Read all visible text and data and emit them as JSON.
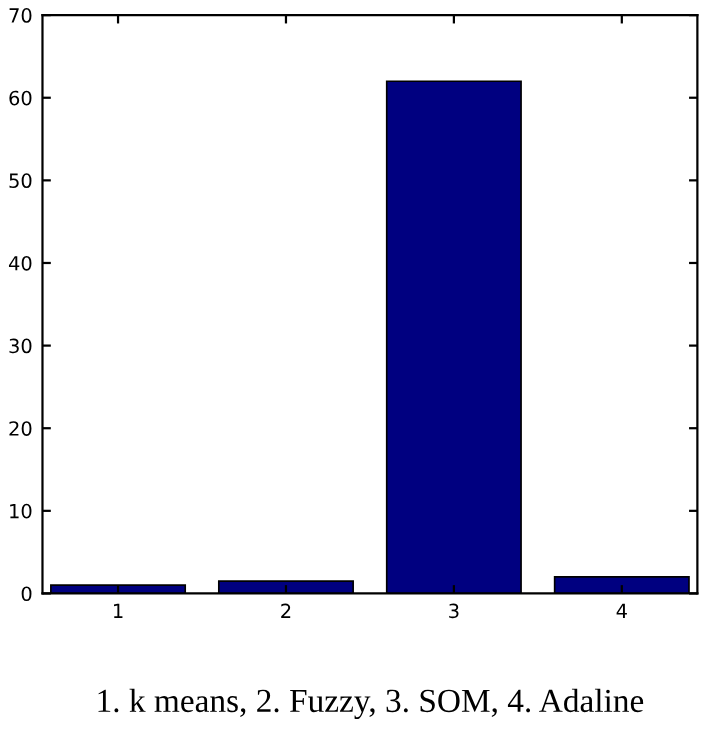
{
  "chart_data": {
    "type": "bar",
    "xlabel": "1. k means, 2. Fuzzy, 3. SOM, 4. Adaline",
    "categories": [
      "1",
      "2",
      "3",
      "4"
    ],
    "values": [
      1,
      1.5,
      62,
      2
    ],
    "color": "#000080",
    "ylim": [
      0,
      70
    ],
    "yticks": [
      0,
      10,
      20,
      30,
      40,
      50,
      60,
      70
    ],
    "grid": false,
    "legend": false
  }
}
